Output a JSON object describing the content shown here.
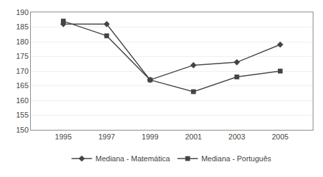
{
  "chart_data": {
    "type": "line",
    "x": [
      1995,
      1997,
      1999,
      2001,
      2003,
      2005
    ],
    "series": [
      {
        "name": "Mediana - Matemática",
        "color": "#444444",
        "marker": "diamond",
        "values": [
          186,
          186,
          167,
          172,
          173,
          179
        ]
      },
      {
        "name": "Mediana - Português",
        "color": "#444444",
        "marker": "square",
        "values": [
          187,
          182,
          167,
          163,
          168,
          170
        ]
      }
    ],
    "xlim": [
      1993.5,
      2006.5
    ],
    "xticks": [
      1995,
      1997,
      1999,
      2001,
      2003,
      2005
    ],
    "ylim": [
      150,
      190
    ],
    "yticks": [
      150,
      155,
      160,
      165,
      170,
      175,
      180,
      185,
      190
    ],
    "grid": true,
    "legend": "bottom"
  }
}
